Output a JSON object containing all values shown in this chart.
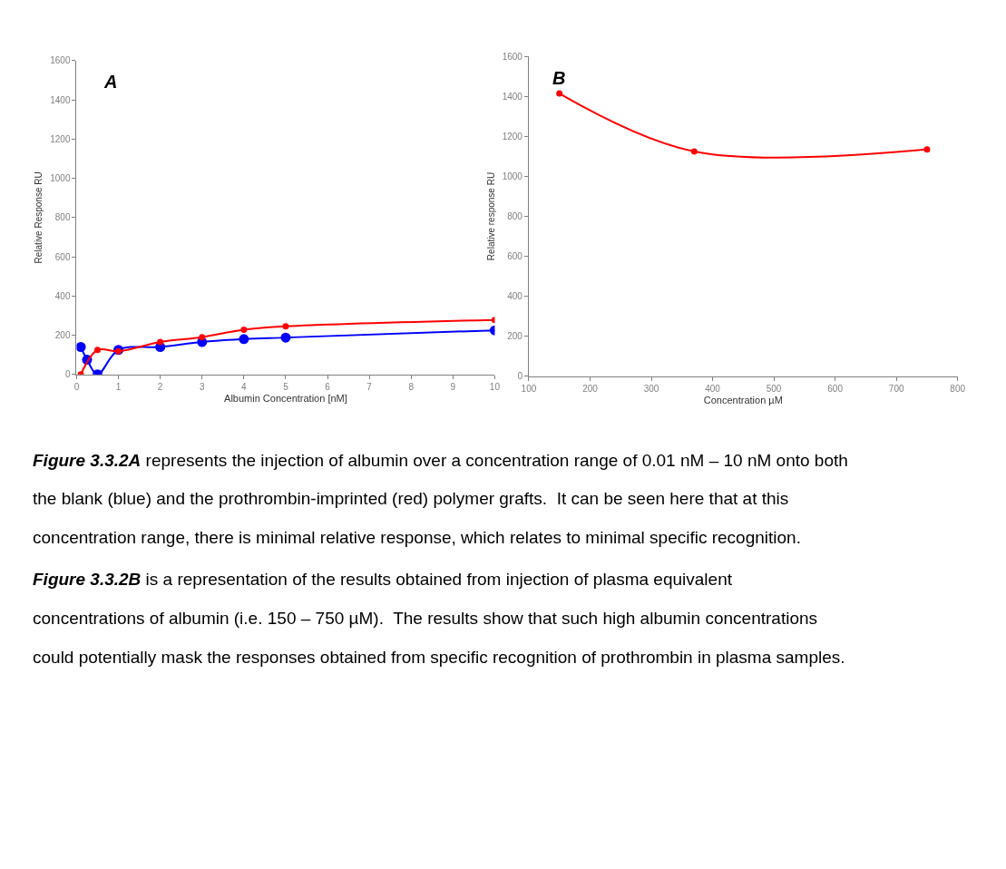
{
  "chart_data": [
    {
      "type": "line",
      "title": "A",
      "xlabel": "Albumin Concentration [nM]",
      "ylabel": "Relative Response RU",
      "xlim": [
        0,
        10
      ],
      "xticks": [
        0,
        1,
        2,
        3,
        4,
        5,
        6,
        7,
        8,
        9,
        10
      ],
      "ylim": [
        0,
        1600
      ],
      "yticks": [
        0,
        200,
        400,
        600,
        800,
        1000,
        1200,
        1400,
        1600
      ],
      "marker": "circle",
      "line_style": "solid",
      "series": [
        {
          "color": "#0000ff",
          "x": [
            0.1,
            0.25,
            0.5,
            1,
            2,
            3,
            4,
            5,
            10
          ],
          "values": [
            140,
            75,
            0,
            125,
            140,
            165,
            180,
            188,
            225
          ]
        },
        {
          "color": "#ff0000",
          "x": [
            0.1,
            0.5,
            1,
            2,
            3,
            4,
            5,
            10
          ],
          "values": [
            0,
            125,
            118,
            165,
            190,
            228,
            245,
            278
          ]
        }
      ]
    },
    {
      "type": "line",
      "title": "B",
      "xlabel": "Concentration µM",
      "ylabel": "Relative response RU",
      "xlim": [
        100,
        800
      ],
      "xticks": [
        100,
        200,
        300,
        400,
        500,
        600,
        700,
        800
      ],
      "ylim": [
        0,
        1600
      ],
      "yticks": [
        0,
        200,
        400,
        600,
        800,
        1000,
        1200,
        1400,
        1600
      ],
      "marker": "circle",
      "line_style": "solid",
      "series": [
        {
          "color": "#ff0000",
          "x": [
            150,
            370,
            750
          ],
          "values": [
            1415,
            1125,
            1135
          ]
        }
      ]
    },
    {
      "type": "other",
      "annotations": [
        "Figure 3.3.2A represents the injection of albumin over a concentration range of 0.01 nM – 10 nM onto both the blank (blue) and the prothrombin-imprinted (red) polymer grafts.  It can be seen here that at this concentration range, there is minimal relative response, which relates to minimal specific recognition.",
        "Figure 3.3.2B is a representation of the results obtained from injection of plasma equivalent concentrations of albumin (i.e. 150 – 750 µM).  The results show that such high albumin concentrations could potentially mask the responses obtained from specific recognition of prothrombin in plasma samples."
      ]
    }
  ]
}
